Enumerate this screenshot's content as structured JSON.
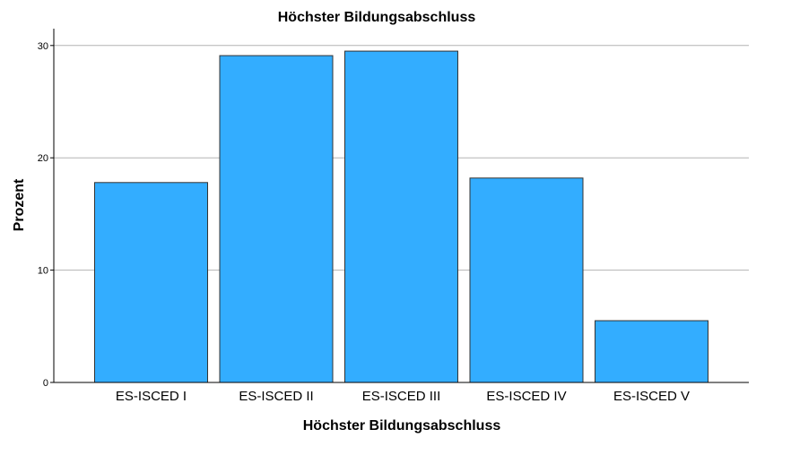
{
  "chart_data": {
    "type": "bar",
    "title": "Höchster Bildungsabschluss",
    "xlabel": "Höchster Bildungsabschluss",
    "ylabel": "Prozent",
    "categories": [
      "ES-ISCED I",
      "ES-ISCED II",
      "ES-ISCED III",
      "ES-ISCED IV",
      "ES-ISCED V"
    ],
    "values": [
      17.8,
      29.1,
      29.5,
      18.2,
      5.5
    ],
    "ylim": [
      0,
      31.5
    ],
    "yticks": [
      "0",
      "10",
      "20",
      "30"
    ],
    "grid": true,
    "bar_color": "#33adff",
    "bar_stroke": "#333333"
  }
}
